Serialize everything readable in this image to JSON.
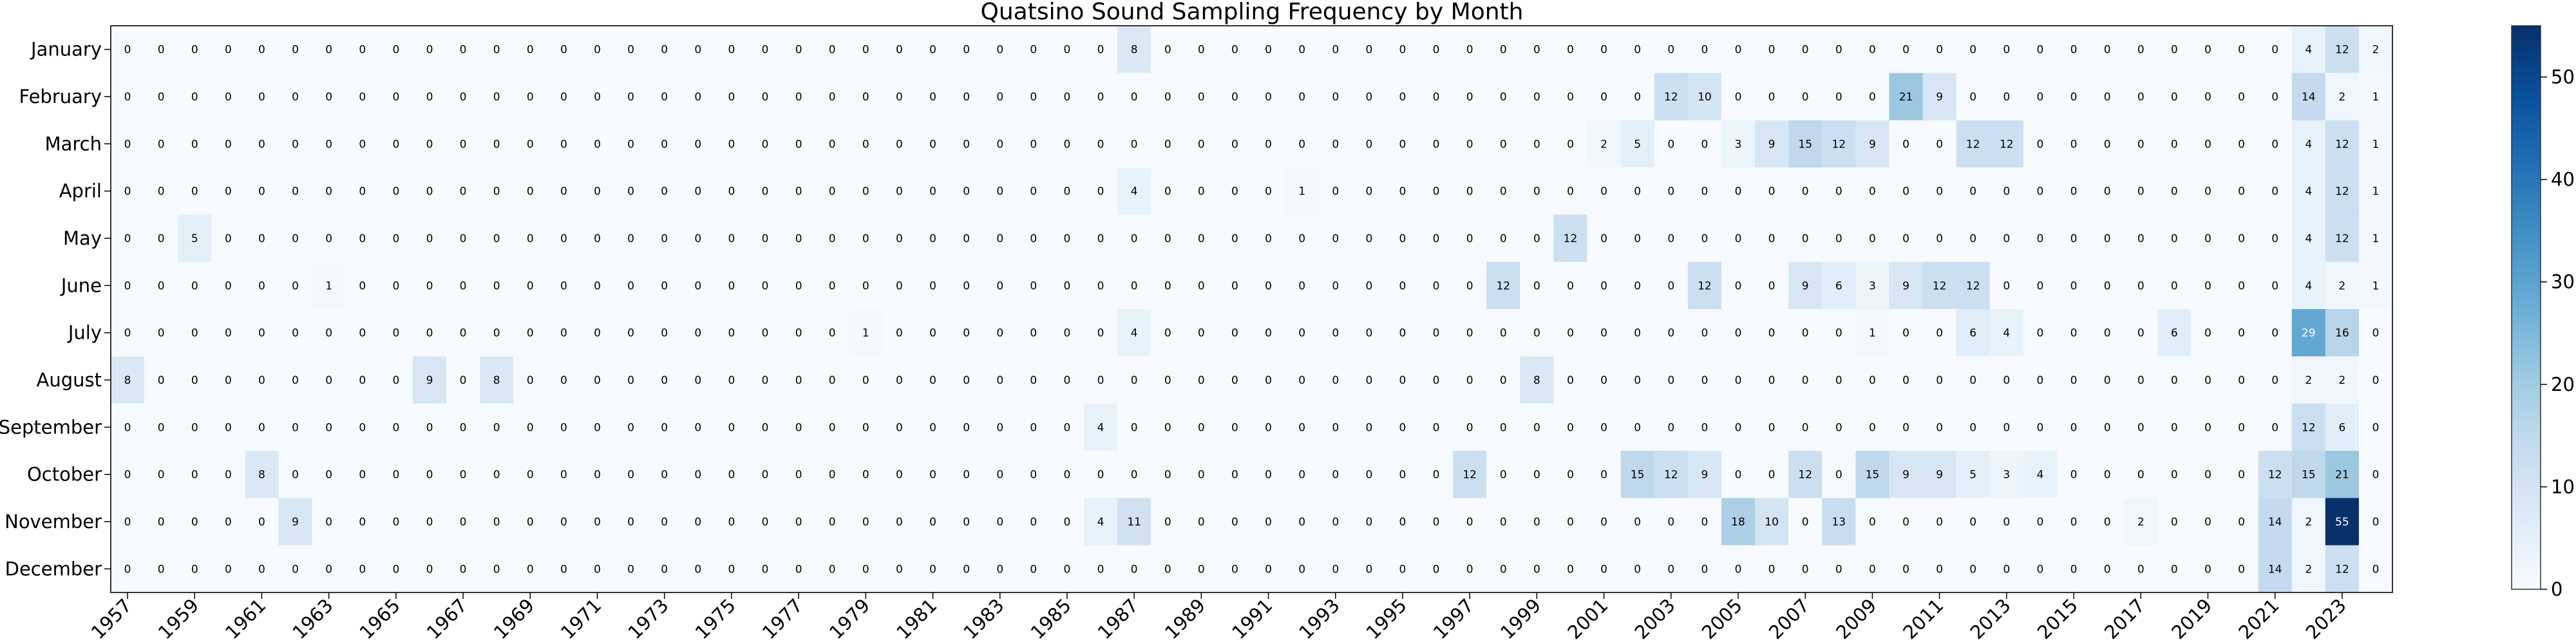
{
  "chart_data": {
    "type": "heatmap",
    "title": "Quatsino Sound Sampling Frequency by Month",
    "xlabel": "",
    "ylabel": "",
    "colormap": "Blues",
    "color_min": "#f7fbff",
    "color_max": "#08306b",
    "zlim": [
      0,
      55
    ],
    "colorbar_ticks": [
      0,
      10,
      20,
      30,
      40,
      50
    ],
    "years": [
      1957,
      1958,
      1959,
      1960,
      1961,
      1962,
      1963,
      1964,
      1965,
      1966,
      1967,
      1968,
      1969,
      1970,
      1971,
      1972,
      1973,
      1974,
      1975,
      1976,
      1977,
      1978,
      1979,
      1980,
      1981,
      1982,
      1983,
      1984,
      1985,
      1986,
      1987,
      1988,
      1989,
      1990,
      1991,
      1992,
      1993,
      1994,
      1995,
      1996,
      1997,
      1998,
      1999,
      2000,
      2001,
      2002,
      2003,
      2004,
      2005,
      2006,
      2007,
      2008,
      2009,
      2010,
      2011,
      2012,
      2013,
      2014,
      2015,
      2016,
      2017,
      2018,
      2019,
      2020,
      2021,
      2022,
      2023,
      2024
    ],
    "year_tick_labels": [
      "1957",
      "1959",
      "1961",
      "1963",
      "1965",
      "1967",
      "1969",
      "1971",
      "1973",
      "1975",
      "1977",
      "1979",
      "1981",
      "1983",
      "1985",
      "1987",
      "1989",
      "1991",
      "1993",
      "1995",
      "1997",
      "1999",
      "2001",
      "2003",
      "2005",
      "2007",
      "2009",
      "2011",
      "2013",
      "2015",
      "2017",
      "2019",
      "2021",
      "2023"
    ],
    "months": [
      "January",
      "February",
      "March",
      "April",
      "May",
      "June",
      "July",
      "August",
      "September",
      "October",
      "November",
      "December"
    ],
    "values": [
      [
        0,
        0,
        0,
        0,
        0,
        0,
        0,
        0,
        0,
        0,
        0,
        0,
        0,
        0,
        0,
        0,
        0,
        0,
        0,
        0,
        0,
        0,
        0,
        0,
        0,
        0,
        0,
        0,
        0,
        0,
        8,
        0,
        0,
        0,
        0,
        0,
        0,
        0,
        0,
        0,
        0,
        0,
        0,
        0,
        0,
        0,
        0,
        0,
        0,
        0,
        0,
        0,
        0,
        0,
        0,
        0,
        0,
        0,
        0,
        0,
        0,
        0,
        0,
        0,
        0,
        4,
        12,
        2
      ],
      [
        0,
        0,
        0,
        0,
        0,
        0,
        0,
        0,
        0,
        0,
        0,
        0,
        0,
        0,
        0,
        0,
        0,
        0,
        0,
        0,
        0,
        0,
        0,
        0,
        0,
        0,
        0,
        0,
        0,
        0,
        0,
        0,
        0,
        0,
        0,
        0,
        0,
        0,
        0,
        0,
        0,
        0,
        0,
        0,
        0,
        0,
        12,
        10,
        0,
        0,
        0,
        0,
        0,
        21,
        9,
        0,
        0,
        0,
        0,
        0,
        0,
        0,
        0,
        0,
        0,
        14,
        2,
        1
      ],
      [
        0,
        0,
        0,
        0,
        0,
        0,
        0,
        0,
        0,
        0,
        0,
        0,
        0,
        0,
        0,
        0,
        0,
        0,
        0,
        0,
        0,
        0,
        0,
        0,
        0,
        0,
        0,
        0,
        0,
        0,
        0,
        0,
        0,
        0,
        0,
        0,
        0,
        0,
        0,
        0,
        0,
        0,
        0,
        0,
        2,
        5,
        0,
        0,
        3,
        9,
        15,
        12,
        9,
        0,
        0,
        12,
        12,
        0,
        0,
        0,
        0,
        0,
        0,
        0,
        0,
        4,
        12,
        1
      ],
      [
        0,
        0,
        0,
        0,
        0,
        0,
        0,
        0,
        0,
        0,
        0,
        0,
        0,
        0,
        0,
        0,
        0,
        0,
        0,
        0,
        0,
        0,
        0,
        0,
        0,
        0,
        0,
        0,
        0,
        0,
        4,
        0,
        0,
        0,
        0,
        1,
        0,
        0,
        0,
        0,
        0,
        0,
        0,
        0,
        0,
        0,
        0,
        0,
        0,
        0,
        0,
        0,
        0,
        0,
        0,
        0,
        0,
        0,
        0,
        0,
        0,
        0,
        0,
        0,
        0,
        4,
        12,
        1
      ],
      [
        0,
        0,
        5,
        0,
        0,
        0,
        0,
        0,
        0,
        0,
        0,
        0,
        0,
        0,
        0,
        0,
        0,
        0,
        0,
        0,
        0,
        0,
        0,
        0,
        0,
        0,
        0,
        0,
        0,
        0,
        0,
        0,
        0,
        0,
        0,
        0,
        0,
        0,
        0,
        0,
        0,
        0,
        0,
        12,
        0,
        0,
        0,
        0,
        0,
        0,
        0,
        0,
        0,
        0,
        0,
        0,
        0,
        0,
        0,
        0,
        0,
        0,
        0,
        0,
        0,
        4,
        12,
        1
      ],
      [
        0,
        0,
        0,
        0,
        0,
        0,
        1,
        0,
        0,
        0,
        0,
        0,
        0,
        0,
        0,
        0,
        0,
        0,
        0,
        0,
        0,
        0,
        0,
        0,
        0,
        0,
        0,
        0,
        0,
        0,
        0,
        0,
        0,
        0,
        0,
        0,
        0,
        0,
        0,
        0,
        0,
        12,
        0,
        0,
        0,
        0,
        0,
        12,
        0,
        0,
        9,
        6,
        3,
        9,
        12,
        12,
        0,
        0,
        0,
        0,
        0,
        0,
        0,
        0,
        0,
        4,
        2,
        1
      ],
      [
        0,
        0,
        0,
        0,
        0,
        0,
        0,
        0,
        0,
        0,
        0,
        0,
        0,
        0,
        0,
        0,
        0,
        0,
        0,
        0,
        0,
        0,
        1,
        0,
        0,
        0,
        0,
        0,
        0,
        0,
        4,
        0,
        0,
        0,
        0,
        0,
        0,
        0,
        0,
        0,
        0,
        0,
        0,
        0,
        0,
        0,
        0,
        0,
        0,
        0,
        0,
        0,
        1,
        0,
        0,
        6,
        4,
        0,
        0,
        0,
        0,
        6,
        0,
        0,
        0,
        29,
        16,
        0
      ],
      [
        8,
        0,
        0,
        0,
        0,
        0,
        0,
        0,
        0,
        9,
        0,
        8,
        0,
        0,
        0,
        0,
        0,
        0,
        0,
        0,
        0,
        0,
        0,
        0,
        0,
        0,
        0,
        0,
        0,
        0,
        0,
        0,
        0,
        0,
        0,
        0,
        0,
        0,
        0,
        0,
        0,
        0,
        8,
        0,
        0,
        0,
        0,
        0,
        0,
        0,
        0,
        0,
        0,
        0,
        0,
        0,
        0,
        0,
        0,
        0,
        0,
        0,
        0,
        0,
        0,
        2,
        2,
        0
      ],
      [
        0,
        0,
        0,
        0,
        0,
        0,
        0,
        0,
        0,
        0,
        0,
        0,
        0,
        0,
        0,
        0,
        0,
        0,
        0,
        0,
        0,
        0,
        0,
        0,
        0,
        0,
        0,
        0,
        0,
        4,
        0,
        0,
        0,
        0,
        0,
        0,
        0,
        0,
        0,
        0,
        0,
        0,
        0,
        0,
        0,
        0,
        0,
        0,
        0,
        0,
        0,
        0,
        0,
        0,
        0,
        0,
        0,
        0,
        0,
        0,
        0,
        0,
        0,
        0,
        0,
        12,
        6,
        0
      ],
      [
        0,
        0,
        0,
        0,
        8,
        0,
        0,
        0,
        0,
        0,
        0,
        0,
        0,
        0,
        0,
        0,
        0,
        0,
        0,
        0,
        0,
        0,
        0,
        0,
        0,
        0,
        0,
        0,
        0,
        0,
        0,
        0,
        0,
        0,
        0,
        0,
        0,
        0,
        0,
        0,
        12,
        0,
        0,
        0,
        0,
        15,
        12,
        9,
        0,
        0,
        12,
        0,
        15,
        9,
        9,
        5,
        3,
        4,
        0,
        0,
        0,
        0,
        0,
        0,
        12,
        15,
        21,
        0
      ],
      [
        0,
        0,
        0,
        0,
        0,
        9,
        0,
        0,
        0,
        0,
        0,
        0,
        0,
        0,
        0,
        0,
        0,
        0,
        0,
        0,
        0,
        0,
        0,
        0,
        0,
        0,
        0,
        0,
        0,
        4,
        11,
        0,
        0,
        0,
        0,
        0,
        0,
        0,
        0,
        0,
        0,
        0,
        0,
        0,
        0,
        0,
        0,
        0,
        18,
        10,
        0,
        13,
        0,
        0,
        0,
        0,
        0,
        0,
        0,
        0,
        2,
        0,
        0,
        0,
        14,
        2,
        55,
        0
      ],
      [
        0,
        0,
        0,
        0,
        0,
        0,
        0,
        0,
        0,
        0,
        0,
        0,
        0,
        0,
        0,
        0,
        0,
        0,
        0,
        0,
        0,
        0,
        0,
        0,
        0,
        0,
        0,
        0,
        0,
        0,
        0,
        0,
        0,
        0,
        0,
        0,
        0,
        0,
        0,
        0,
        0,
        0,
        0,
        0,
        0,
        0,
        0,
        0,
        0,
        0,
        0,
        0,
        0,
        0,
        0,
        0,
        0,
        0,
        0,
        0,
        0,
        0,
        0,
        0,
        14,
        2,
        12,
        0
      ]
    ]
  }
}
